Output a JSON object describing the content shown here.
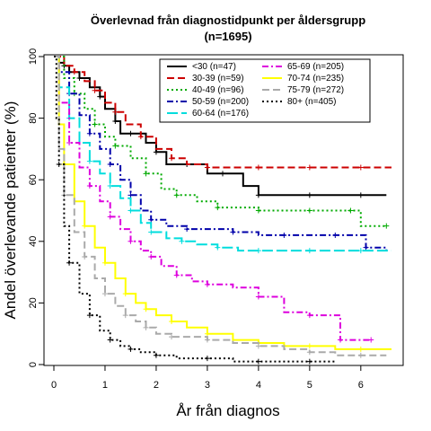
{
  "chart_data": {
    "type": "line",
    "title": "Överlevnad från diagnostidpunkt per åldersgrupp",
    "subtitle": "(n=1695)",
    "xlabel": "År från diagnos",
    "ylabel": "Andel överlevande patienter (%)",
    "xlim": [
      0,
      6.6
    ],
    "ylim": [
      0,
      100
    ],
    "xticks": [
      "0",
      "1",
      "2",
      "3",
      "4",
      "5",
      "6"
    ],
    "yticks": [
      "0",
      "20",
      "40",
      "60",
      "80",
      "100"
    ],
    "legend_position": "top-right",
    "series": [
      {
        "name": "<30 (n=47)",
        "color": "#000000",
        "dash": "solid",
        "x": [
          0,
          0.1,
          0.2,
          0.3,
          0.5,
          0.7,
          0.9,
          1.0,
          1.2,
          1.3,
          1.5,
          1.8,
          2.0,
          2.2,
          2.6,
          3.0,
          3.3,
          3.7,
          4.0,
          4.5,
          5.0,
          5.5,
          6.0,
          6.5
        ],
        "y": [
          100,
          98,
          97,
          95,
          93,
          90,
          87,
          83,
          79,
          75,
          75,
          72,
          69,
          65,
          65,
          62,
          62,
          58,
          55,
          55,
          55,
          55,
          55,
          55
        ]
      },
      {
        "name": "30-39 (n=59)",
        "color": "#cc0000",
        "dash": "dash",
        "x": [
          0,
          0.2,
          0.4,
          0.6,
          0.8,
          1.0,
          1.2,
          1.4,
          1.7,
          2.0,
          2.3,
          2.6,
          3.0,
          3.5,
          4.0,
          4.5,
          5.0,
          5.5,
          6.0,
          6.6
        ],
        "y": [
          100,
          97,
          95,
          92,
          89,
          85,
          82,
          78,
          74,
          70,
          67,
          65,
          64,
          64,
          64,
          64,
          64,
          64,
          64,
          64
        ]
      },
      {
        "name": "40-49 (n=96)",
        "color": "#00aa00",
        "dash": "dot",
        "x": [
          0,
          0.2,
          0.4,
          0.6,
          0.8,
          1.0,
          1.2,
          1.5,
          1.8,
          2.1,
          2.4,
          2.8,
          3.2,
          3.6,
          4.0,
          4.5,
          5.0,
          5.5,
          5.8,
          6.0,
          6.5
        ],
        "y": [
          100,
          93,
          88,
          83,
          78,
          74,
          71,
          67,
          62,
          57,
          55,
          53,
          51,
          51,
          50,
          50,
          50,
          50,
          50,
          45,
          45
        ]
      },
      {
        "name": "50-59 (n=200)",
        "color": "#0000aa",
        "dash": "dashdot",
        "x": [
          0,
          0.1,
          0.3,
          0.5,
          0.7,
          0.9,
          1.1,
          1.3,
          1.5,
          1.7,
          1.9,
          2.2,
          2.6,
          3.0,
          3.5,
          4.0,
          4.5,
          5.0,
          5.5,
          6.0,
          6.1,
          6.5
        ],
        "y": [
          100,
          95,
          88,
          81,
          75,
          70,
          65,
          60,
          55,
          50,
          47,
          45,
          44,
          44,
          43,
          42,
          42,
          42,
          42,
          42,
          38,
          37
        ]
      },
      {
        "name": "60-64 (n=176)",
        "color": "#00dddd",
        "dash": "longdash",
        "x": [
          0,
          0.1,
          0.3,
          0.5,
          0.7,
          0.9,
          1.1,
          1.3,
          1.5,
          1.7,
          1.9,
          2.2,
          2.5,
          2.8,
          3.2,
          3.6,
          4.0,
          4.5,
          5.0,
          5.5,
          6.0,
          6.6
        ],
        "y": [
          100,
          90,
          80,
          72,
          66,
          62,
          58,
          54,
          50,
          46,
          43,
          41,
          40,
          39,
          38,
          37,
          37,
          37,
          37,
          37,
          37,
          37
        ]
      },
      {
        "name": "65-69 (n=205)",
        "color": "#dd00dd",
        "dash": "dashdot",
        "x": [
          0,
          0.1,
          0.3,
          0.5,
          0.7,
          0.9,
          1.1,
          1.3,
          1.5,
          1.7,
          1.9,
          2.1,
          2.4,
          2.7,
          3.0,
          3.5,
          4.0,
          4.5,
          5.0,
          5.5,
          5.6,
          6.0,
          6.2
        ],
        "y": [
          100,
          85,
          72,
          64,
          58,
          53,
          48,
          44,
          40,
          37,
          35,
          32,
          29,
          27,
          26,
          25,
          22,
          17,
          16,
          16,
          8,
          8,
          8
        ]
      },
      {
        "name": "70-74 (n=235)",
        "color": "#ffff00",
        "dash": "solid",
        "x": [
          0,
          0.1,
          0.2,
          0.4,
          0.6,
          0.8,
          1.0,
          1.2,
          1.4,
          1.6,
          1.8,
          2.0,
          2.3,
          2.6,
          3.0,
          3.5,
          4.0,
          4.5,
          5.0,
          5.5,
          6.0,
          6.6
        ],
        "y": [
          100,
          78,
          65,
          53,
          45,
          38,
          33,
          28,
          23,
          20,
          18,
          16,
          14,
          12,
          10,
          8,
          7,
          6,
          6,
          5,
          5,
          5
        ]
      },
      {
        "name": "75-79 (n=272)",
        "color": "#aaaaaa",
        "dash": "dash",
        "x": [
          0,
          0.1,
          0.2,
          0.4,
          0.6,
          0.8,
          1.0,
          1.2,
          1.4,
          1.6,
          1.8,
          2.0,
          2.3,
          2.6,
          3.0,
          3.5,
          4.0,
          4.5,
          5.0,
          5.5,
          6.0,
          6.5
        ],
        "y": [
          100,
          70,
          55,
          43,
          35,
          28,
          23,
          19,
          16,
          14,
          12,
          10,
          9,
          9,
          8,
          7,
          6,
          5,
          4,
          3,
          3,
          3
        ]
      },
      {
        "name": "80+ (n=405)",
        "color": "#000000",
        "dash": "dot",
        "x": [
          0,
          0.05,
          0.1,
          0.2,
          0.3,
          0.5,
          0.7,
          0.9,
          1.1,
          1.3,
          1.5,
          1.7,
          2.0,
          2.4,
          3.0,
          3.5,
          4.0,
          4.5,
          5.0,
          5.5
        ],
        "y": [
          100,
          80,
          65,
          45,
          33,
          23,
          16,
          11,
          8,
          6,
          5,
          4,
          3,
          2,
          2,
          1,
          1,
          1,
          1,
          1
        ]
      }
    ]
  }
}
